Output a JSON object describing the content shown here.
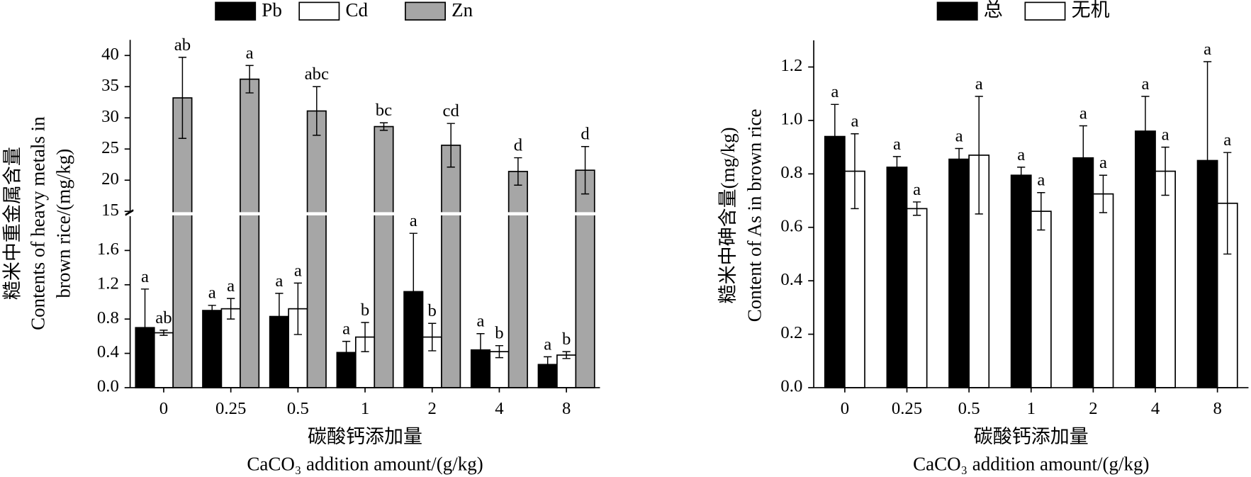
{
  "chart_data": [
    {
      "type": "bar",
      "categories": [
        "0",
        "0.25",
        "0.5",
        "1",
        "2",
        "4",
        "8"
      ],
      "series": [
        {
          "name": "Pb",
          "color": "#000000",
          "values": [
            0.7,
            0.9,
            0.83,
            0.41,
            1.12,
            0.44,
            0.27
          ],
          "errors": [
            0.45,
            0.06,
            0.27,
            0.13,
            0.68,
            0.19,
            0.09
          ],
          "labels": [
            "a",
            "a",
            "a",
            "a",
            "a",
            "a",
            "a"
          ]
        },
        {
          "name": "Cd",
          "color": "#ffffff",
          "values": [
            0.64,
            0.92,
            0.92,
            0.59,
            0.59,
            0.42,
            0.38
          ],
          "errors": [
            0.03,
            0.12,
            0.3,
            0.17,
            0.16,
            0.07,
            0.04
          ],
          "labels": [
            "ab",
            "a",
            "a",
            "b",
            "b",
            "b",
            "b"
          ]
        },
        {
          "name": "Zn",
          "color": "#a6a6a6",
          "axis": "upper",
          "values": [
            33.2,
            36.2,
            31.1,
            28.6,
            25.6,
            21.4,
            21.6
          ],
          "errors": [
            6.5,
            2.2,
            3.9,
            0.6,
            3.5,
            2.2,
            3.8
          ],
          "labels": [
            "ab",
            "a",
            "abc",
            "bc",
            "cd",
            "d",
            "d"
          ]
        }
      ],
      "ylim": [
        0,
        2.0
      ],
      "yticks": [
        {
          "value": 0,
          "label": "0.0"
        },
        0.4,
        0.8,
        1.2,
        1.6
      ],
      "ylim_upper": [
        15,
        42.5
      ],
      "yticks_upper": [
        15,
        20,
        25,
        30,
        35,
        40
      ],
      "ylabel": [
        "糙米中重金属含量",
        "Contents of heavy metals in",
        "brown rice/(mg/kg)"
      ],
      "xlabel": [
        "碳酸钙添加量",
        "CaCO₃ addition amount/(g/kg)"
      ]
    },
    {
      "type": "bar",
      "categories": [
        "0",
        "0.25",
        "0.5",
        "1",
        "2",
        "4",
        "8"
      ],
      "series": [
        {
          "name": "总",
          "color": "#000000",
          "values": [
            0.94,
            0.825,
            0.855,
            0.795,
            0.86,
            0.96,
            0.85
          ],
          "errors": [
            0.12,
            0.04,
            0.04,
            0.03,
            0.12,
            0.13,
            0.37
          ],
          "labels": [
            "a",
            "a",
            "a",
            "a",
            "a",
            "a",
            "a"
          ]
        },
        {
          "name": "无机",
          "color": "#ffffff",
          "values": [
            0.81,
            0.67,
            0.87,
            0.66,
            0.725,
            0.81,
            0.69
          ],
          "errors": [
            0.14,
            0.025,
            0.22,
            0.07,
            0.07,
            0.09,
            0.19
          ],
          "labels": [
            "a",
            "a",
            "a",
            "a",
            "a",
            "a",
            "a"
          ]
        }
      ],
      "ylim": [
        0,
        1.3
      ],
      "yticks": [
        {
          "value": 0,
          "label": "0.0"
        },
        0.2,
        0.4,
        0.6,
        0.8,
        {
          "value": 1.0,
          "label": "1.0"
        },
        1.2
      ],
      "ylabel": [
        "糙米中砷含量(mg/kg)",
        "Content of As in brown rice"
      ],
      "xlabel": [
        "碳酸钙添加量",
        "CaCO₃ addition amount/(g/kg)"
      ]
    }
  ]
}
